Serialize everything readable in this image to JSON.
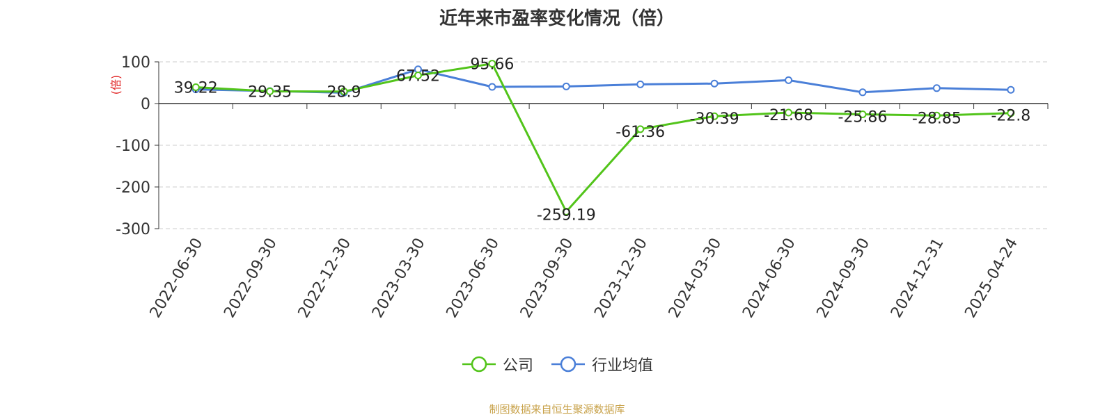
{
  "title": "近年来市盈率变化情况（倍）",
  "source": "制图数据来自恒生聚源数据库",
  "chart_data": {
    "type": "line",
    "title": "近年来市盈率变化情况（倍）",
    "ylabel": "(倍)",
    "ylim": [
      -300,
      100
    ],
    "yticks": [
      100,
      0,
      -100,
      -200,
      -300
    ],
    "ytick_labels": [
      "100",
      "0",
      "-100",
      "-200",
      "-300"
    ],
    "grid": true,
    "legend_position": "bottom",
    "categories": [
      "2022-06-30",
      "2022-09-30",
      "2022-12-30",
      "2023-03-30",
      "2023-06-30",
      "2023-09-30",
      "2023-12-30",
      "2024-03-30",
      "2024-06-30",
      "2024-09-30",
      "2024-12-31",
      "2025-04-24"
    ],
    "series": [
      {
        "name": "公司",
        "color": "#52c41a",
        "values": [
          39.22,
          29.35,
          28.9,
          67.52,
          95.66,
          -259.19,
          -61.36,
          -30.39,
          -21.68,
          -25.86,
          -28.85,
          -22.8
        ],
        "labels": [
          "39.22",
          "29.35",
          "28.9",
          "67.52",
          "95.66",
          "-259.19",
          "-61.36",
          "-30.39",
          "-21.68",
          "-25.86",
          "-28.85",
          "-22.8"
        ]
      },
      {
        "name": "行业均值",
        "color": "#4a7fd8",
        "values": [
          34,
          30,
          26,
          82,
          40,
          41,
          46,
          48,
          56,
          27,
          37,
          33
        ]
      }
    ]
  }
}
